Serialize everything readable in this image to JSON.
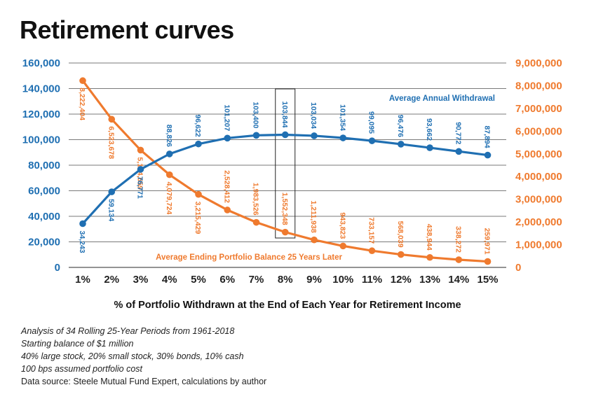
{
  "title": "Retirement curves",
  "notes": [
    "Analysis of 34 Rolling 25-Year Periods from 1961-2018",
    "Starting balance of $1 million",
    "40% large stock, 20% small stock, 30% bonds, 10% cash",
    "100 bps assumed portfolio cost"
  ],
  "source": "Data source:  Steele Mutual Fund Expert, calculations by author",
  "chart_data": {
    "type": "line",
    "categories": [
      "1%",
      "2%",
      "3%",
      "4%",
      "5%",
      "6%",
      "7%",
      "8%",
      "9%",
      "10%",
      "11%",
      "12%",
      "13%",
      "14%",
      "15%"
    ],
    "xlabel": "% of Portfolio Withdrawn at the End of Each Year for Retirement Income",
    "y_left": {
      "ticks": [
        "0",
        "20,000",
        "40,000",
        "60,000",
        "80,000",
        "100,000",
        "120,000",
        "140,000",
        "160,000"
      ],
      "ylim": [
        0,
        160000
      ]
    },
    "y_right": {
      "ticks": [
        "0",
        "1,000,000",
        "2,000,000",
        "3,000,000",
        "4,000,000",
        "5,000,000",
        "6,000,000",
        "7,000,000",
        "8,000,000",
        "9,000,000"
      ],
      "ylim": [
        0,
        9000000
      ]
    },
    "grid": "horizontal",
    "highlight_category": "8%",
    "series": [
      {
        "name": "Average Annual Withdrawal",
        "axis": "left",
        "color": "#1f6fb2",
        "values": [
          34243,
          59134,
          76771,
          88826,
          96622,
          101207,
          103400,
          103844,
          103034,
          101354,
          99095,
          96476,
          93662,
          90772,
          87894
        ],
        "labels": [
          "34,243",
          "59,134",
          "76,771",
          "88,826",
          "96,622",
          "101,207",
          "103,400",
          "103,844",
          "103,034",
          "101,354",
          "99,095",
          "96,476",
          "93,662",
          "90,772",
          "87,894"
        ]
      },
      {
        "name": "Average Ending Portfolio Balance 25 Years Later",
        "axis": "right",
        "color": "#ef7a2e",
        "values": [
          8222404,
          6523678,
          5164659,
          4079724,
          3215429,
          2528412,
          1983526,
          1552348,
          1211938,
          943823,
          733157,
          568039,
          438944,
          338272,
          259971
        ],
        "labels": [
          "8,222,404",
          "6,523,678",
          "5,164,659",
          "4,079,724",
          "3,215,429",
          "2,528,412",
          "1,983,526",
          "1,552,348",
          "1,211,938",
          "943,823",
          "733,157",
          "568,039",
          "438,944",
          "338,272",
          "259,971"
        ]
      }
    ]
  }
}
